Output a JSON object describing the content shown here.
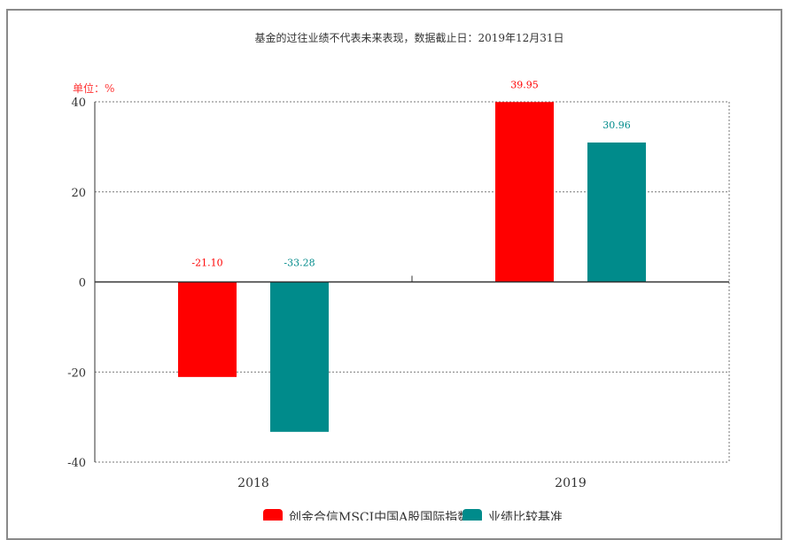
{
  "note": "基金的过往业绩不代表未来表现，数据截止日：2019年12月31日",
  "unit_label": "单位：%",
  "chart_data": {
    "type": "bar",
    "categories": [
      "2018",
      "2019"
    ],
    "series": [
      {
        "name": "创金合信MSCI中国A股国际指数A",
        "color": "#ff0000",
        "values": [
          -21.1,
          39.95
        ],
        "labels": [
          "-21.10",
          "39.95"
        ]
      },
      {
        "name": "业绩比较基准",
        "color": "#008b8b",
        "values": [
          -33.28,
          30.96
        ],
        "labels": [
          "-33.28",
          "30.96"
        ]
      }
    ],
    "yticks": [
      "40",
      "20",
      "0",
      "-20",
      "-40"
    ],
    "ylim": [
      -40,
      40
    ],
    "grid": true,
    "legend": "bottom"
  }
}
